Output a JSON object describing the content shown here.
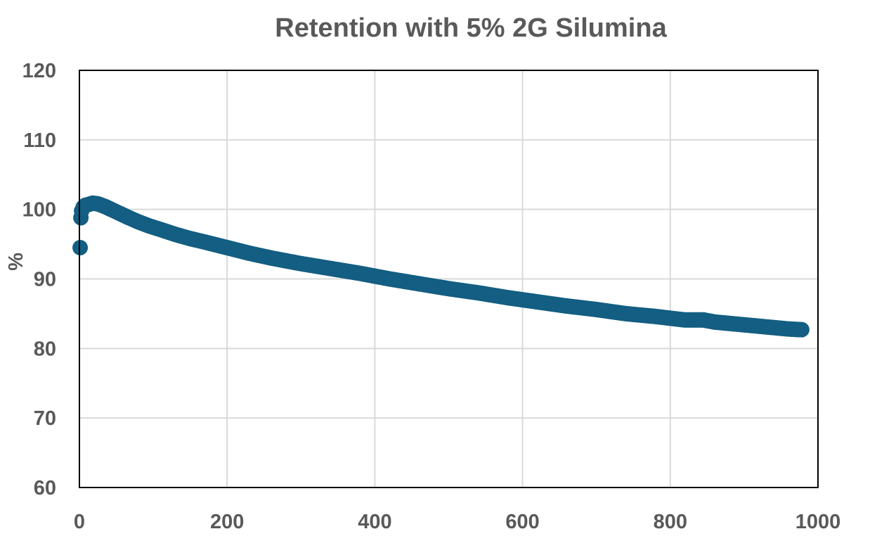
{
  "chart_data": {
    "type": "scatter",
    "title": "Retention with 5% 2G Silumina",
    "xlabel": "",
    "ylabel": "%",
    "xlim": [
      0,
      1000
    ],
    "ylim": [
      60,
      120
    ],
    "x_ticks": [
      "0",
      "200",
      "400",
      "600",
      "800",
      "1000"
    ],
    "y_ticks": [
      "60",
      "70",
      "80",
      "90",
      "100",
      "110",
      "120"
    ],
    "x_tick_values": [
      0,
      200,
      400,
      600,
      800,
      1000
    ],
    "y_tick_values": [
      60,
      70,
      80,
      90,
      100,
      110,
      120
    ],
    "grid": true,
    "legend": "none",
    "marker_color": "#135e82",
    "series": [
      {
        "x": [
          1,
          2,
          3,
          5,
          8,
          12,
          18,
          25,
          35,
          45,
          55,
          65,
          80,
          95,
          110,
          130,
          150,
          170,
          200,
          230,
          260,
          300,
          340,
          380,
          420,
          460,
          500,
          540,
          580,
          620,
          660,
          700,
          740,
          780,
          820,
          845,
          860,
          880,
          900,
          920,
          940,
          960,
          978
        ],
        "y": [
          94.5,
          98.8,
          99.8,
          100.3,
          100.6,
          100.7,
          100.9,
          100.8,
          100.4,
          99.9,
          99.4,
          98.9,
          98.2,
          97.6,
          97.1,
          96.4,
          95.8,
          95.3,
          94.5,
          93.7,
          93.0,
          92.2,
          91.5,
          90.8,
          90.0,
          89.3,
          88.6,
          88.0,
          87.3,
          86.7,
          86.1,
          85.6,
          85.0,
          84.6,
          84.1,
          84.1,
          83.8,
          83.6,
          83.4,
          83.2,
          83.0,
          82.8,
          82.7
        ]
      }
    ]
  }
}
